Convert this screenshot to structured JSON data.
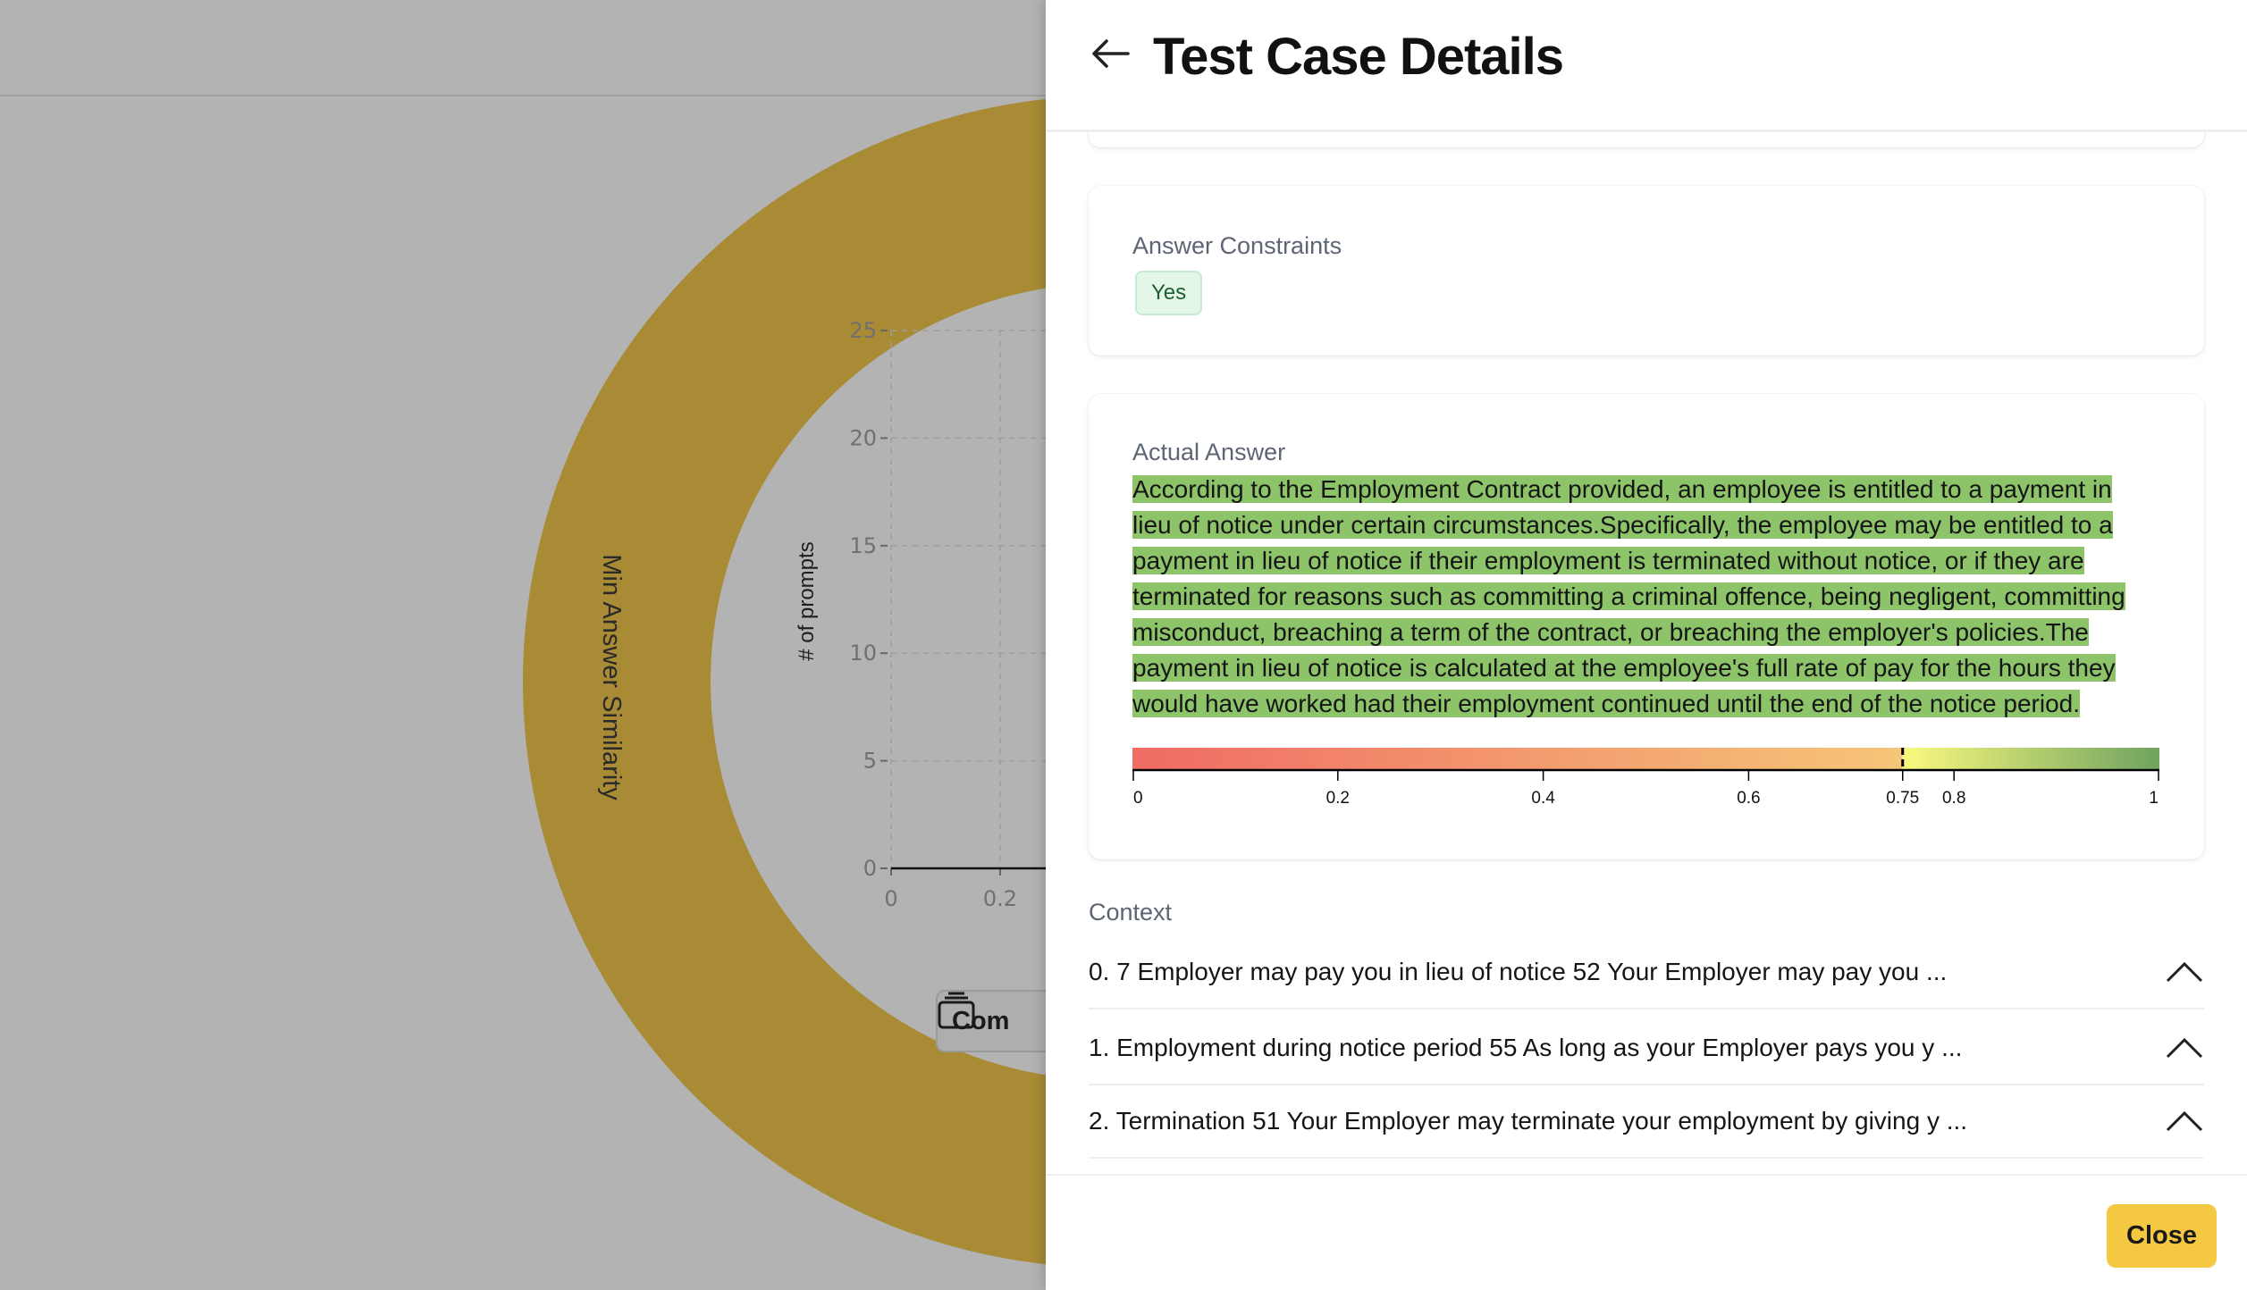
{
  "backdrop": {
    "ring_label": "Min Answer Similarity",
    "ring_color": "#a88b34",
    "compare_button_label": "Com",
    "chart_data": {
      "type": "bar",
      "ylabel": "# of prompts",
      "ylim": [
        0,
        25
      ],
      "y_ticks": [
        "0",
        "5",
        "10",
        "15",
        "20",
        "25"
      ],
      "x_ticks": [
        "0",
        "0.2"
      ],
      "grid": true
    }
  },
  "panel": {
    "title": "Test Case Details",
    "answer_constraints": {
      "label": "Answer Constraints",
      "value": "Yes"
    },
    "actual_answer": {
      "label": "Actual Answer",
      "text": "According to the Employment Contract provided, an employee is entitled to a payment in lieu of notice under certain circumstances.Specifically, the employee may be entitled to a payment in lieu of notice if their employment is terminated without notice, or if they are terminated for reasons such as committing a criminal offence, being negligent, committing misconduct, breaching a term of the contract, or breaching the employer's policies.The payment in lieu of notice is calculated at the employee's full rate of pay for the hours they would have worked had their employment continued until the end of the notice period.",
      "highlight_color": "#8dc46a",
      "scale": {
        "ticks": [
          "0",
          "0.2",
          "0.4",
          "0.6",
          "0.75",
          "0.8",
          "1"
        ],
        "threshold": 0.75,
        "colors": {
          "low": "#f06b64",
          "mid": "#f6c678",
          "threshold": "#faf97e",
          "high": "#6fa35f"
        }
      }
    },
    "context": {
      "label": "Context",
      "items": [
        "0. 7 Employer may pay you in lieu of notice 52 Your Employer may pay you ...",
        "1. Employment during notice period 55 As long as your Employer pays you y ...",
        "2. Termination 51 Your Employer may terminate your employment by giving y ..."
      ]
    },
    "close_label": "Close"
  }
}
